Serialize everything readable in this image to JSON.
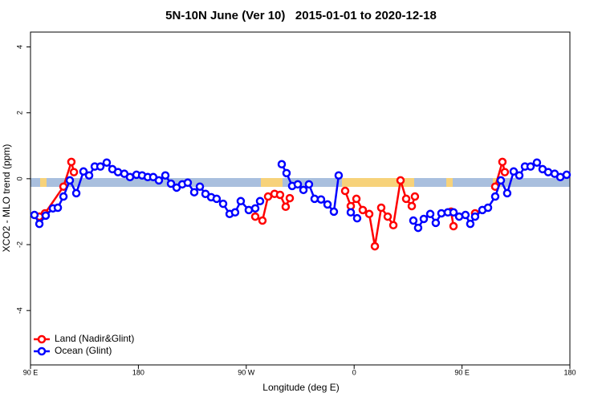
{
  "chart_data": {
    "type": "line",
    "title": "5N-10N June (Ver 10)   2015-01-01 to 2020-12-18",
    "x_label": "Longitude (deg E)",
    "y_label": "XCO2 - MLO trend (ppm)",
    "xlim": [
      90,
      540
    ],
    "xticks": [
      {
        "value": 90,
        "label": "90 E"
      },
      180,
      {
        "value": 270,
        "label": "90 W"
      },
      {
        "value": 360,
        "label": "0"
      },
      {
        "value": 450,
        "label": "90 E"
      },
      {
        "value": 540,
        "label": "180"
      }
    ],
    "ylim": [
      -5.65,
      4.45
    ],
    "yticks": [
      4,
      2,
      0,
      -2,
      -4
    ],
    "legend": "bottom-left",
    "series": [
      {
        "name": "Land (Nadir&Glint)",
        "color": "#ff0000",
        "x": [
          97.4,
          102.1,
          117.5,
          124.1,
          126.2,
          null,
          277.5,
          283.5,
          288.2,
          293.6,
          298.2,
          302.9,
          306.3,
          null,
          352.5,
          357.2,
          361.9,
          367.2,
          372.6,
          377.3,
          382.6,
          388.0,
          392.7,
          398.7,
          403.4,
          408.1,
          410.7,
          null,
          440.9,
          442.9,
          null,
          460.9,
          null,
          477.7,
          483.7,
          485.7
        ],
        "values": [
          -1.15,
          -1.05,
          -0.24,
          0.51,
          0.2,
          null,
          -1.15,
          -1.27,
          -0.54,
          -0.46,
          -0.49,
          -0.85,
          -0.59,
          null,
          -0.37,
          -0.83,
          -0.61,
          -0.95,
          -1.07,
          -2.05,
          -0.88,
          -1.15,
          -1.41,
          -0.05,
          -0.61,
          -0.83,
          -0.54,
          null,
          -1.0,
          -1.44,
          null,
          -1.05,
          null,
          -0.24,
          0.51,
          0.2
        ]
      },
      {
        "name": "Ocean (Glint)",
        "color": "#0000ff",
        "x": [
          93.3,
          97.4,
          102.7,
          108.7,
          112.8,
          117.5,
          122.8,
          128.2,
          134.2,
          138.9,
          143.6,
          148.3,
          153.6,
          158.3,
          163.0,
          168.3,
          173.0,
          178.4,
          183.1,
          187.8,
          192.4,
          197.1,
          202.5,
          207.2,
          211.9,
          216.6,
          221.2,
          226.6,
          231.3,
          236.0,
          240.7,
          245.3,
          250.7,
          256.1,
          260.7,
          265.4,
          272.1,
          277.5,
          281.5,
          null,
          299.6,
          303.6,
          308.3,
          313.0,
          317.7,
          322.3,
          327.0,
          332.4,
          337.8,
          343.1,
          347.1,
          null,
          357.2,
          362.5,
          null,
          409.4,
          413.4,
          418.1,
          423.5,
          428.1,
          432.8,
          438.2,
          442.9,
          447.6,
          452.9,
          456.9,
          460.9,
          467.0,
          471.7,
          477.7,
          482.4,
          487.7,
          493.1,
          497.8,
          502.5,
          507.2,
          512.5,
          517.2,
          521.9,
          527.3,
          532.0,
          537.3
        ],
        "values": [
          -1.1,
          -1.37,
          -1.12,
          -0.9,
          -0.88,
          -0.54,
          -0.05,
          -0.44,
          0.22,
          0.1,
          0.37,
          0.37,
          0.49,
          0.29,
          0.2,
          0.15,
          0.05,
          0.12,
          0.1,
          0.05,
          0.05,
          -0.05,
          0.1,
          -0.15,
          -0.27,
          -0.17,
          -0.12,
          -0.41,
          -0.24,
          -0.46,
          -0.56,
          -0.61,
          -0.76,
          -1.07,
          -1.02,
          -0.68,
          -0.95,
          -0.9,
          -0.68,
          null,
          0.44,
          0.17,
          -0.22,
          -0.17,
          -0.34,
          -0.17,
          -0.61,
          -0.63,
          -0.78,
          -1.0,
          0.1,
          null,
          -1.02,
          -1.2,
          null,
          -1.27,
          -1.49,
          -1.22,
          -1.07,
          -1.34,
          -1.05,
          -1.02,
          -1.02,
          -1.15,
          -1.1,
          -1.37,
          -1.15,
          -0.95,
          -0.88,
          -0.54,
          -0.05,
          -0.44,
          0.22,
          0.1,
          0.37,
          0.37,
          0.49,
          0.29,
          0.2,
          0.15,
          0.05,
          0.12
        ]
      }
    ]
  }
}
